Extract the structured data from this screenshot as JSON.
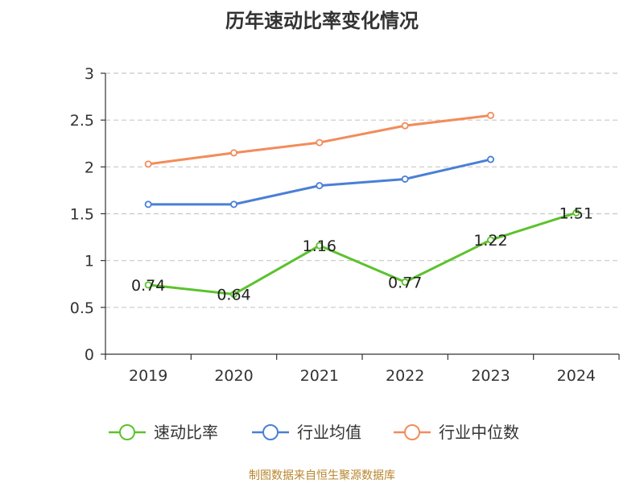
{
  "chart_data": {
    "type": "line",
    "title": "历年速动比率变化情况",
    "categories": [
      "2019",
      "2020",
      "2021",
      "2022",
      "2023",
      "2024"
    ],
    "ylim": [
      0,
      3
    ],
    "yticks": [
      "0",
      "0.5",
      "1",
      "1.5",
      "2",
      "2.5",
      "3"
    ],
    "grid": true,
    "legend_position": "bottom",
    "series": [
      {
        "name": "速动比率",
        "color": "#5cc22d",
        "show_labels": true,
        "values": [
          0.74,
          0.64,
          1.16,
          0.77,
          1.22,
          1.51
        ],
        "labels": [
          "0.74",
          "0.64",
          "1.16",
          "0.77",
          "1.22",
          "1.51"
        ]
      },
      {
        "name": "行业均值",
        "color": "#4a7fd6",
        "show_labels": false,
        "values": [
          1.6,
          1.6,
          1.8,
          1.87,
          2.08,
          null
        ]
      },
      {
        "name": "行业中位数",
        "color": "#f28c5a",
        "show_labels": false,
        "values": [
          2.03,
          2.15,
          2.26,
          2.44,
          2.55,
          null
        ]
      }
    ]
  },
  "source_note": "制图数据来自恒生聚源数据库"
}
